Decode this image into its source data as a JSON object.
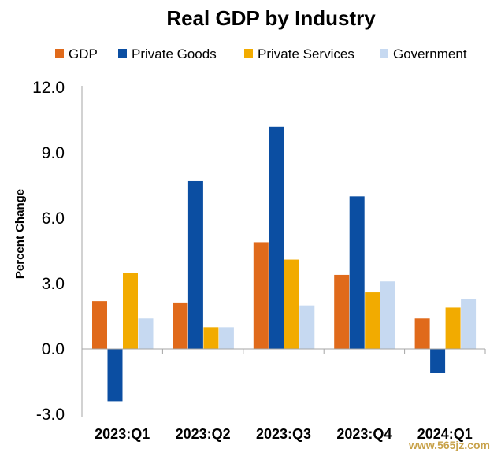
{
  "chart_data": {
    "type": "bar",
    "title": "Real GDP by Industry",
    "xlabel": "",
    "ylabel": "Percent Change",
    "ylim": [
      -3.0,
      12.0
    ],
    "yticks": [
      "12.0",
      "9.0",
      "6.0",
      "3.0",
      "0.0",
      "-3.0"
    ],
    "ytick_values": [
      12,
      9,
      6,
      3,
      0,
      -3
    ],
    "grid": false,
    "legend_position": "top",
    "categories": [
      "2023:Q1",
      "2023:Q2",
      "2023:Q3",
      "2023:Q4",
      "2024:Q1"
    ],
    "series": [
      {
        "name": "GDP",
        "color": "#e06a1b",
        "values": [
          2.2,
          2.1,
          4.9,
          3.4,
          1.4
        ]
      },
      {
        "name": "Private Goods",
        "color": "#0b4ea2",
        "values": [
          -2.4,
          7.7,
          10.2,
          7.0,
          -1.1
        ]
      },
      {
        "name": "Private Services",
        "color": "#f2ab00",
        "values": [
          3.5,
          1.0,
          4.1,
          2.6,
          1.9
        ]
      },
      {
        "name": "Government",
        "color": "#c6d9f1",
        "values": [
          1.4,
          1.0,
          2.0,
          3.1,
          2.3
        ]
      }
    ]
  },
  "watermark": "www.565jz.com"
}
